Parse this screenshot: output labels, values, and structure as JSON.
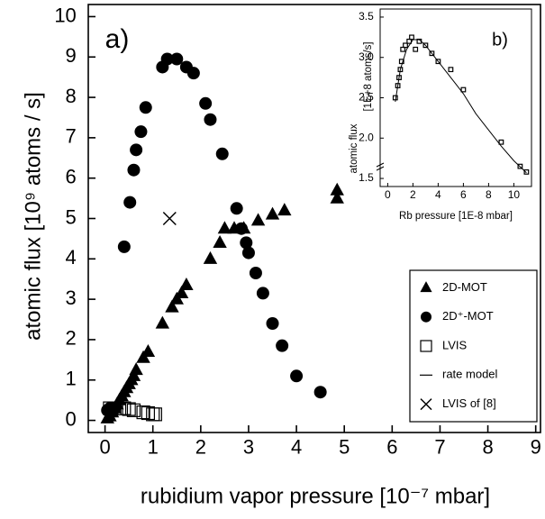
{
  "chart_data": [
    {
      "type": "scatter",
      "annotation": "a)",
      "xlabel": "rubidium vapor pressure   [10⁻⁷ mbar]",
      "ylabel": [
        "atomic flux  [10⁹ atoms / s]"
      ],
      "xlim": [
        -0.35,
        9.1
      ],
      "ylim": [
        -0.3,
        10.3
      ],
      "xticks": [
        0,
        1,
        2,
        3,
        4,
        5,
        6,
        7,
        8,
        9
      ],
      "yticks": [
        0,
        1,
        2,
        3,
        4,
        5,
        6,
        7,
        8,
        9,
        10
      ],
      "legend": "lower right",
      "series": [
        {
          "name": "2D-MOT",
          "marker": "triangle",
          "color": "#000000",
          "x": [
            0.05,
            0.1,
            0.15,
            0.2,
            0.25,
            0.3,
            0.35,
            0.4,
            0.45,
            0.5,
            0.55,
            0.6,
            0.65,
            0.8,
            0.9,
            1.2,
            1.4,
            1.5,
            1.6,
            1.7,
            2.2,
            2.4,
            2.5,
            2.7,
            2.9,
            3.2,
            3.5,
            3.75,
            4.85,
            4.85
          ],
          "values": [
            0.05,
            0.1,
            0.2,
            0.3,
            0.4,
            0.5,
            0.6,
            0.7,
            0.8,
            0.9,
            1.0,
            1.1,
            1.25,
            1.55,
            1.7,
            2.4,
            2.8,
            3.0,
            3.15,
            3.35,
            4.0,
            4.4,
            4.75,
            4.75,
            4.75,
            4.95,
            5.1,
            5.2,
            5.7,
            5.5
          ]
        },
        {
          "name": "2D⁺-MOT",
          "marker": "circle",
          "color": "#000000",
          "x": [
            0.05,
            0.1,
            0.1,
            0.2,
            0.4,
            0.52,
            0.6,
            0.65,
            0.75,
            0.85,
            1.2,
            1.3,
            1.5,
            1.7,
            1.85,
            2.1,
            2.2,
            2.45,
            2.75,
            2.85,
            2.95,
            3.0,
            3.15,
            3.3,
            3.5,
            3.7,
            4.0,
            4.5
          ],
          "values": [
            0.25,
            0.2,
            0.3,
            0.3,
            4.3,
            5.4,
            6.2,
            6.7,
            7.15,
            7.75,
            8.75,
            8.95,
            8.95,
            8.75,
            8.6,
            7.85,
            7.45,
            6.6,
            5.25,
            4.75,
            4.4,
            4.15,
            3.65,
            3.15,
            2.4,
            1.85,
            1.1,
            0.7
          ]
        },
        {
          "name": "LVIS",
          "marker": "square",
          "color": "#000000",
          "x": [
            0.1,
            0.2,
            0.3,
            0.4,
            0.5,
            0.6,
            0.8,
            0.9,
            1.0,
            1.05
          ],
          "values": [
            0.3,
            0.3,
            0.3,
            0.3,
            0.28,
            0.25,
            0.2,
            0.18,
            0.15,
            0.15
          ]
        },
        {
          "name": "rate model",
          "marker": "line",
          "color": "#000000",
          "x": [],
          "values": []
        },
        {
          "name": "LVIS of [8]",
          "marker": "x",
          "color": "#000000",
          "x": [
            1.35
          ],
          "values": [
            5.0
          ]
        }
      ]
    },
    {
      "type": "scatter",
      "annotation": "b)",
      "xlabel": "Rb pressure [1E-8 mbar]",
      "ylabel": [
        "atomic flux",
        "[1E+8 atoms/s]"
      ],
      "xlim": [
        -0.6,
        11.4
      ],
      "ylim": [
        1.4,
        3.6
      ],
      "xticks": [
        0,
        2,
        4,
        6,
        8,
        10
      ],
      "yticks": [
        {
          "value": 1.5,
          "label": "1.5"
        },
        {
          "value": 2.0,
          "label": "2.0"
        },
        {
          "value": 2.5,
          "label": "2.5"
        },
        {
          "value": 3.0,
          "label": "3.0"
        },
        {
          "value": 3.5,
          "label": "3.5"
        }
      ],
      "series": [
        {
          "marker": "square",
          "color": "#000000",
          "x": [
            0.6,
            0.8,
            0.9,
            1.0,
            1.1,
            1.2,
            1.4,
            1.7,
            1.9,
            2.2,
            2.5,
            3.0,
            3.5,
            4.0,
            5.0,
            6.0,
            9.0,
            10.5,
            11.0
          ],
          "values": [
            2.5,
            2.65,
            2.75,
            2.85,
            2.95,
            3.1,
            3.15,
            3.2,
            3.25,
            3.1,
            3.2,
            3.15,
            3.05,
            2.95,
            2.85,
            2.6,
            1.95,
            1.65,
            1.58
          ]
        },
        {
          "marker": "line",
          "color": "#000000",
          "x": [
            0.6,
            1,
            1.5,
            2,
            2.5,
            3,
            4,
            5,
            6,
            7,
            8,
            9,
            10,
            11
          ],
          "values": [
            2.45,
            2.85,
            3.1,
            3.22,
            3.22,
            3.15,
            2.95,
            2.75,
            2.55,
            2.3,
            2.1,
            1.9,
            1.72,
            1.57
          ]
        }
      ]
    }
  ]
}
